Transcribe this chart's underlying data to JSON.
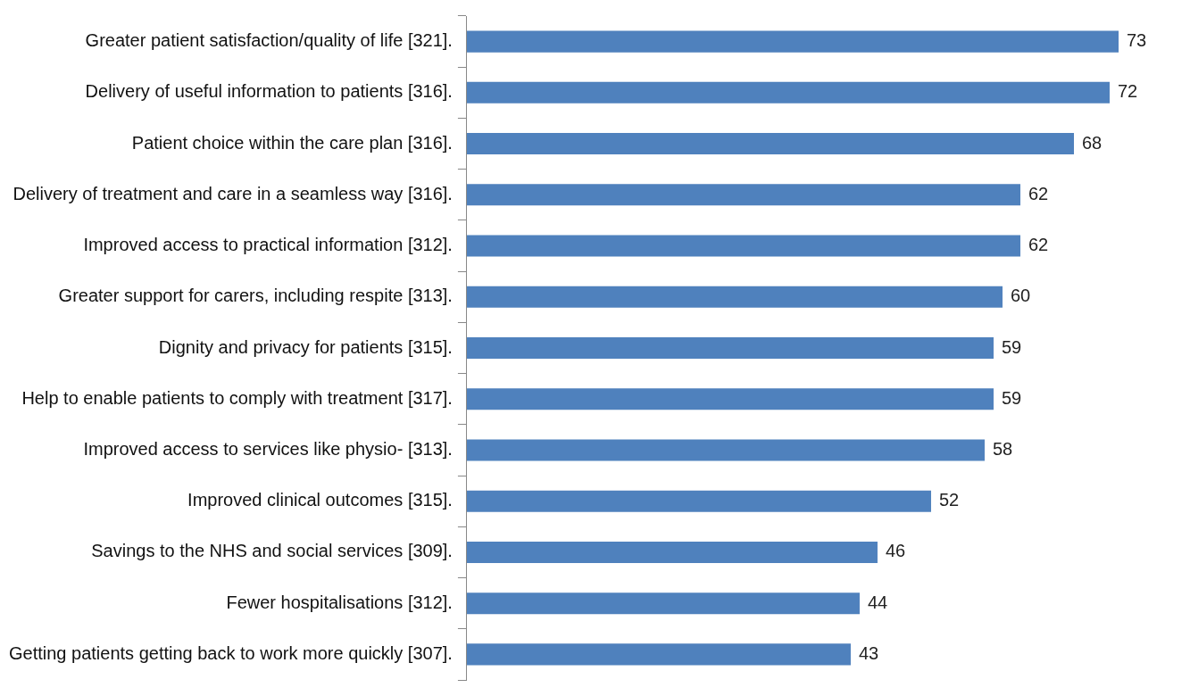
{
  "chart_data": {
    "type": "bar",
    "orientation": "horizontal",
    "categories": [
      "Greater patient satisfaction/quality of life [321].",
      "Delivery of useful information to patients [316].",
      "Patient choice within the care plan [316].",
      "Delivery of treatment and care in a seamless way [316].",
      "Improved access to practical information [312].",
      "Greater support for carers, including respite [313].",
      "Dignity and privacy for patients [315].",
      "Help to enable patients to comply with treatment [317].",
      "Improved access to services like physio- [313].",
      "Improved clinical outcomes [315].",
      "Savings to the NHS and social services [309].",
      "Fewer hospitalisations [312].",
      "Getting patients getting back to work more quickly [307]."
    ],
    "values": [
      73,
      72,
      68,
      62,
      62,
      60,
      59,
      59,
      58,
      52,
      46,
      44,
      43
    ],
    "color": "#4f81bd",
    "data_labels": true,
    "tick_labels": "y"
  }
}
